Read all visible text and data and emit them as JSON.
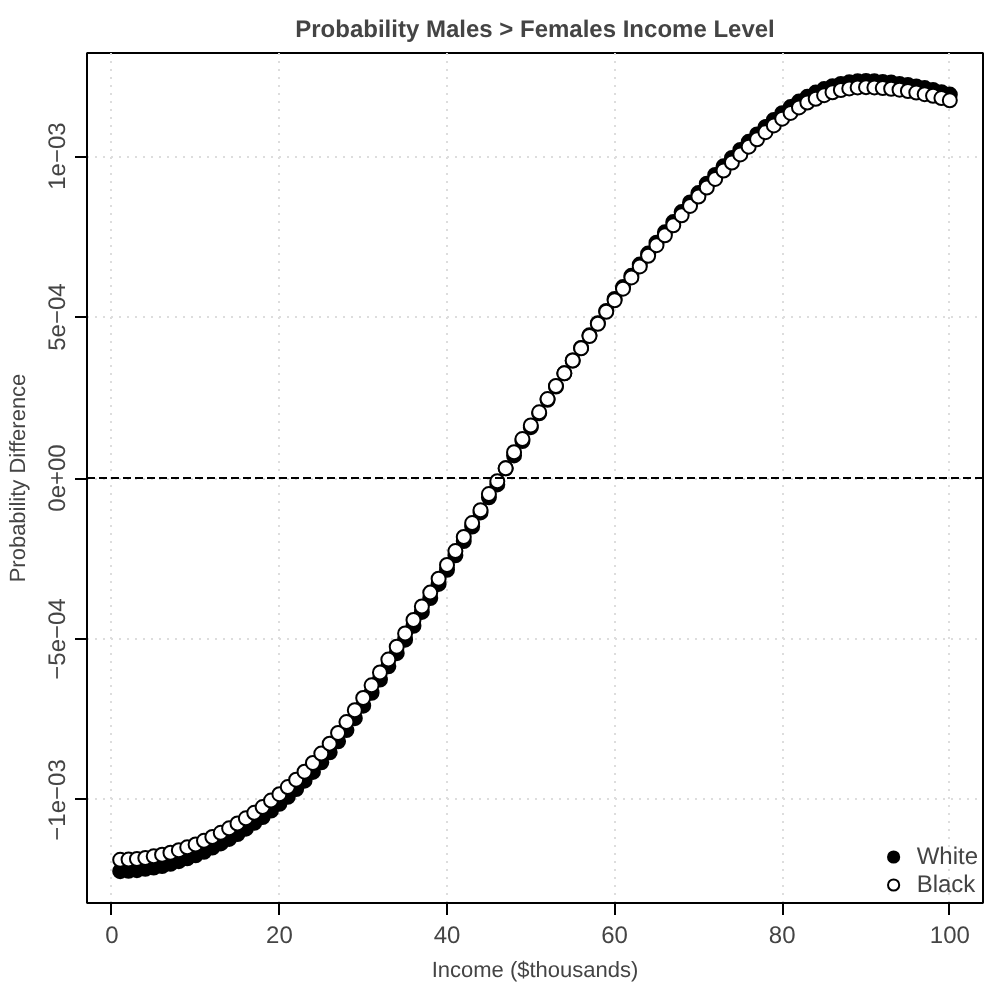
{
  "chart_data": {
    "type": "scatter",
    "title": "Probability Males > Females Income Level",
    "xlabel": "Income ($thousands)",
    "ylabel": "Probability Difference",
    "x": [
      1,
      2,
      3,
      4,
      5,
      6,
      7,
      8,
      9,
      10,
      11,
      12,
      13,
      14,
      15,
      16,
      17,
      18,
      19,
      20,
      21,
      22,
      23,
      24,
      25,
      26,
      27,
      28,
      29,
      30,
      31,
      32,
      33,
      34,
      35,
      36,
      37,
      38,
      39,
      40,
      41,
      42,
      43,
      44,
      45,
      46,
      47,
      48,
      49,
      50,
      51,
      52,
      53,
      54,
      55,
      56,
      57,
      58,
      59,
      60,
      61,
      62,
      63,
      64,
      65,
      66,
      67,
      68,
      69,
      70,
      71,
      72,
      73,
      74,
      75,
      76,
      77,
      78,
      79,
      80,
      81,
      82,
      83,
      84,
      85,
      86,
      87,
      88,
      89,
      90,
      91,
      92,
      93,
      94,
      95,
      96,
      97,
      98,
      99,
      100
    ],
    "series": [
      {
        "name": "White",
        "color": "#000000",
        "values": [
          -0.001221,
          -0.00122,
          -0.001218,
          -0.001214,
          -0.00121,
          -0.001205,
          -0.001198,
          -0.00119,
          -0.001181,
          -0.001172,
          -0.001161,
          -0.001148,
          -0.001135,
          -0.001121,
          -0.001106,
          -0.001089,
          -0.001071,
          -0.001053,
          -0.001033,
          -0.001012,
          -0.00099,
          -0.000966,
          -0.00094,
          -0.000913,
          -0.000883,
          -0.000852,
          -0.000818,
          -0.000783,
          -0.000746,
          -0.000707,
          -0.000667,
          -0.000626,
          -0.000585,
          -0.000544,
          -0.000502,
          -0.000459,
          -0.000416,
          -0.000373,
          -0.000329,
          -0.000285,
          -0.00024,
          -0.000196,
          -0.000151,
          -0.000107,
          -6e-05,
          -2e-05,
          3e-05,
          7e-05,
          0.000115,
          0.000158,
          0.000201,
          0.000243,
          0.000284,
          0.000325,
          0.000365,
          0.000404,
          0.000443,
          0.000481,
          0.000519,
          0.000556,
          0.000593,
          0.000628,
          0.000663,
          0.000697,
          0.000731,
          0.000763,
          0.000795,
          0.000826,
          0.000856,
          0.000885,
          0.000914,
          0.000941,
          0.000968,
          0.000994,
          0.001019,
          0.001044,
          0.001067,
          0.00109,
          0.001112,
          0.001133,
          0.001152,
          0.001169,
          0.001184,
          0.001197,
          0.001208,
          0.001217,
          0.001224,
          0.001229,
          0.001232,
          0.001233,
          0.001232,
          0.00123,
          0.001228,
          0.001224,
          0.001221,
          0.001216,
          0.001211,
          0.001205,
          0.001198,
          0.001191
        ]
      },
      {
        "name": "Black",
        "color": "#000000",
        "values": [
          -0.001186,
          -0.001185,
          -0.001183,
          -0.00118,
          -0.001175,
          -0.00117,
          -0.001164,
          -0.001156,
          -0.001147,
          -0.001138,
          -0.001127,
          -0.001115,
          -0.001102,
          -0.001088,
          -0.001073,
          -0.001057,
          -0.00104,
          -0.001022,
          -0.001002,
          -0.000982,
          -0.00096,
          -0.000937,
          -0.000912,
          -0.000885,
          -0.000856,
          -0.000825,
          -0.000792,
          -0.000758,
          -0.000721,
          -0.000683,
          -0.000644,
          -0.000604,
          -0.000564,
          -0.000524,
          -0.000483,
          -0.000441,
          -0.000399,
          -0.000356,
          -0.000313,
          -0.00027,
          -0.000227,
          -0.000183,
          -0.00014,
          -0.0001,
          -5e-05,
          -1e-05,
          3e-05,
          8e-05,
          0.000121,
          0.000163,
          0.000204,
          0.000245,
          0.000286,
          0.000325,
          0.000365,
          0.000403,
          0.000441,
          0.000479,
          0.000516,
          0.000552,
          0.000588,
          0.000623,
          0.000657,
          0.00069,
          0.000723,
          0.000754,
          0.000785,
          0.000816,
          0.000845,
          0.000874,
          0.000902,
          0.000929,
          0.000955,
          0.00098,
          0.001005,
          0.001029,
          0.001052,
          0.001074,
          0.001095,
          0.001116,
          0.001134,
          0.001151,
          0.001166,
          0.001178,
          0.001189,
          0.001198,
          0.001205,
          0.00121,
          0.001213,
          0.001214,
          0.001213,
          0.001211,
          0.001209,
          0.001206,
          0.001202,
          0.001197,
          0.001192,
          0.001187,
          0.00118,
          0.001173
        ]
      }
    ],
    "xlim": [
      -2.96,
      103.96
    ],
    "xticks": [
      0,
      20,
      40,
      60,
      80,
      100
    ],
    "ylim": [
      -0.00132,
      0.00132
    ],
    "yticks": [
      {
        "value": -0.001,
        "label": "−1e−03"
      },
      {
        "value": -0.0005,
        "label": "−5e−04"
      },
      {
        "value": 0,
        "label": "0e+00"
      },
      {
        "value": 0.0005,
        "label": "5e−04"
      },
      {
        "value": 0.001,
        "label": "1e−03"
      }
    ],
    "ref_lines": [
      {
        "axis": "y",
        "value": 0,
        "color": "#000000",
        "line_style": "dashed"
      }
    ],
    "grid": true,
    "legend": "bottom right",
    "marker": "circle"
  }
}
